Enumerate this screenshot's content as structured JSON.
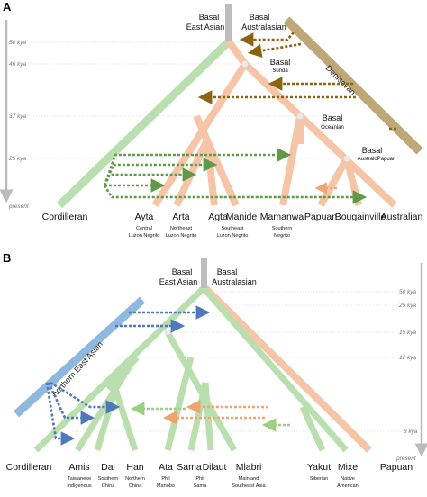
{
  "panels": [
    {
      "letter": "A",
      "time_labels": [
        "50 kya",
        "46 kya",
        "37 kya",
        "25 kya",
        "present"
      ],
      "ancestor_labels": {
        "basal_east_asian_1": "Basal",
        "basal_east_asian_2": "East Asian",
        "basal_australasian_1": "Basal",
        "basal_australasian_2": "Australasian",
        "basal_sunda_1": "Basal",
        "basal_sunda_2": "Sunda",
        "basal_oceanian_1": "Basal",
        "basal_oceanian_2": "Oceanian",
        "basal_australopapuan_1": "Basal",
        "basal_australopapuan_2": "AustraloPapuan",
        "denisovan": "Denisovan"
      },
      "tips": [
        {
          "label": "Cordilleran",
          "sub1": "",
          "sub2": ""
        },
        {
          "label": "Ayta",
          "sub1": "Central",
          "sub2": "Luzon Negrito"
        },
        {
          "label": "Arta",
          "sub1": "Northeast",
          "sub2": "Luzon Negrito"
        },
        {
          "label": "Agta",
          "sub1": "",
          "sub2": ""
        },
        {
          "label": "Manide",
          "sub1": "Southeast",
          "sub2": "Luzon Negrito"
        },
        {
          "label": "Mamanwa",
          "sub1": "Southern",
          "sub2": "Negrito"
        },
        {
          "label": "Papuan",
          "sub1": "",
          "sub2": ""
        },
        {
          "label": "Bougainville",
          "sub1": "",
          "sub2": ""
        },
        {
          "label": "Australian",
          "sub1": "",
          "sub2": ""
        }
      ]
    },
    {
      "letter": "B",
      "time_labels": [
        "50 kya",
        "25 kya",
        "15 kya",
        "12 kya",
        "8 kya",
        "present"
      ],
      "ancestor_labels": {
        "basal_east_asian_1": "Basal",
        "basal_east_asian_2": "East Asian",
        "basal_australasian_1": "Basal",
        "basal_australasian_2": "Australasian",
        "northern_east_asian": "northern East Asian"
      },
      "tips": [
        {
          "label": "Cordilleran",
          "sub1": "",
          "sub2": ""
        },
        {
          "label": "Amis",
          "sub1": "Taiwanese",
          "sub2": "Indigenous"
        },
        {
          "label": "Dai",
          "sub1": "Southern",
          "sub2": "China"
        },
        {
          "label": "Han",
          "sub1": "Northern",
          "sub2": "China"
        },
        {
          "label": "Ata",
          "sub1": "Phil",
          "sub2": "Manobo"
        },
        {
          "label": "Sama",
          "sub1": "",
          "sub2": ""
        },
        {
          "label": "Dilaut",
          "sub1": "Phil",
          "sub2": "Sama"
        },
        {
          "label": "Mlabri",
          "sub1": "Mainland",
          "sub2": "Southeast Asia"
        },
        {
          "label": "Yakut",
          "sub1": "Siberian",
          "sub2": ""
        },
        {
          "label": "Mixe",
          "sub1": "Native",
          "sub2": "American"
        },
        {
          "label": "Papuan",
          "sub1": "",
          "sub2": ""
        }
      ]
    }
  ],
  "colors": {
    "east_asian_green": "#b9dfae",
    "australasian_salmon": "#f6c4a6",
    "denisovan_olive": "#bfa877",
    "northern_blue": "#8fb8de",
    "root_gray": "#bdbdbd",
    "arrow_green": "#5f9a48",
    "arrow_brown": "#8a6410",
    "arrow_blue": "#4f79b8",
    "arrow_lightgreen": "#9ccf85",
    "arrow_orange": "#f0a46f"
  }
}
